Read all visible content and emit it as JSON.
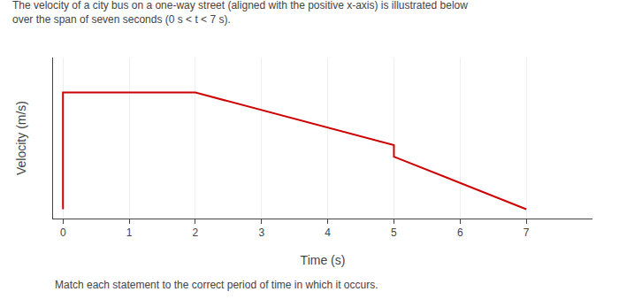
{
  "chart_data": {
    "type": "line",
    "title": "The velocity of a city bus on a one-way street (aligned with the positive x-axis) is illustrated below",
    "subtitle": "over the span of seven seconds (0 s < t < 7 s).",
    "x_label": "Time (s)",
    "y_label": "Velocity (m/s)",
    "annotations": [
      "Match each statement to the correct period of time in which it occurs."
    ],
    "x": [
      0,
      0,
      2,
      5,
      5,
      7
    ],
    "values": [
      0,
      10,
      10,
      5.5,
      4.5,
      0
    ],
    "color": "#cc0000",
    "xlim": [
      -0.15,
      8.0
    ],
    "ylim": [
      -0.8,
      13
    ],
    "xticks": [
      0,
      1,
      2,
      3,
      4,
      5,
      6,
      7
    ],
    "yticks": [],
    "tick_labels": "x",
    "grid": true
  }
}
